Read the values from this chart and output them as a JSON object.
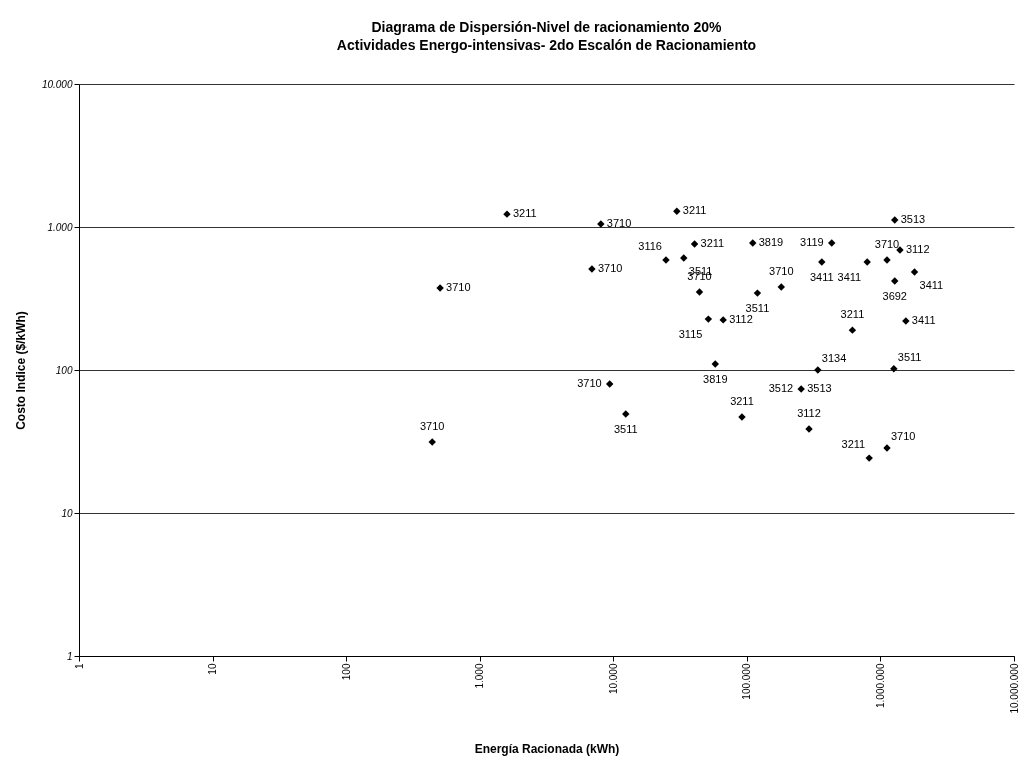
{
  "chart_data": {
    "type": "scatter",
    "title": "Diagrama de Dispersión-Nivel de racionamiento 20%",
    "subtitle": "Actividades Energo-intensivas- 2do Escalón  de Racionamiento",
    "xlabel": "Energía Racionada (kWh)",
    "ylabel": "Costo Indice ($/kWh)",
    "log": "xy",
    "grid": "y",
    "marker": "diamond",
    "xlim": [
      1,
      10000000
    ],
    "ylim": [
      1,
      10000
    ],
    "xticks": [
      1,
      10,
      100,
      {
        "value": 1000,
        "label": "1.000"
      },
      {
        "value": 10000,
        "label": "10.000"
      },
      {
        "value": 100000,
        "label": "100.000"
      },
      {
        "value": 1000000,
        "label": "1.000.000"
      },
      {
        "value": 10000000,
        "label": "10.000.000"
      }
    ],
    "yticks": [
      1,
      10,
      100,
      {
        "value": 1000,
        "label": "1.000"
      },
      {
        "value": 10000,
        "label": "10.000"
      }
    ],
    "series": [
      {
        "color": "#000000",
        "x": [
          1600,
          8070,
          505,
          441,
          6920,
          29900,
          24800,
          33700,
          40600,
          44200,
          51500,
          66500,
          110700,
          181000,
          120000,
          432000,
          364000,
          796000,
          1120000,
          1400000,
          1280000,
          1800000,
          1550000,
          617000,
          1280000,
          1260000,
          340000,
          58000,
          255000,
          91900,
          292000,
          824000,
          1120000,
          9400,
          12400
        ],
        "values": [
          1230,
          1050,
          374,
          31.4,
          508,
          1290,
          588,
          607,
          760,
          351,
          227,
          224,
          773,
          381,
          345,
          773,
          569,
          569,
          588,
          690,
          419,
          484,
          220,
          190,
          1120,
          102,
          100,
          110,
          73.6,
          46.9,
          38.7,
          24.2,
          28.5,
          79.8,
          49.3
        ]
      }
    ],
    "annotations": [
      {
        "text": "3211",
        "x": 1600,
        "y": 1230
      },
      {
        "text": "3710",
        "x": 8070,
        "y": 1050
      },
      {
        "text": "3710",
        "x": 505,
        "y": 374
      },
      {
        "text": "3710",
        "x": 441,
        "y": 31.4
      },
      {
        "text": "3710",
        "x": 6920,
        "y": 508
      },
      {
        "text": "3211",
        "x": 29900,
        "y": 1290
      },
      {
        "text": "3116",
        "x": 24800,
        "y": 588
      },
      {
        "text": "3511",
        "x": 33700,
        "y": 607
      },
      {
        "text": "3211",
        "x": 40600,
        "y": 760
      },
      {
        "text": "3710",
        "x": 44200,
        "y": 351
      },
      {
        "text": "3115",
        "x": 51500,
        "y": 227
      },
      {
        "text": "3112",
        "x": 66500,
        "y": 224
      },
      {
        "text": "3819",
        "x": 110700,
        "y": 773
      },
      {
        "text": "3710",
        "x": 181000,
        "y": 381
      },
      {
        "text": "3511",
        "x": 120000,
        "y": 345
      },
      {
        "text": "3119",
        "x": 432000,
        "y": 773
      },
      {
        "text": "3411",
        "x": 364000,
        "y": 569
      },
      {
        "text": "3411",
        "x": 796000,
        "y": 569
      },
      {
        "text": "3710",
        "x": 1120000,
        "y": 588
      },
      {
        "text": "3112",
        "x": 1400000,
        "y": 690
      },
      {
        "text": "3692",
        "x": 1280000,
        "y": 419
      },
      {
        "text": "3411",
        "x": 1800000,
        "y": 484
      },
      {
        "text": "3411",
        "x": 1550000,
        "y": 220
      },
      {
        "text": "3211",
        "x": 617000,
        "y": 190
      },
      {
        "text": "3513",
        "x": 1280000,
        "y": 1120
      },
      {
        "text": "3511",
        "x": 1260000,
        "y": 102
      },
      {
        "text": "3134",
        "x": 340000,
        "y": 100
      },
      {
        "text": "3819",
        "x": 58000,
        "y": 110
      },
      {
        "text": "3513",
        "x": 255000,
        "y": 73.6
      },
      {
        "text": "3512",
        "x": 255000,
        "y": 73.6
      },
      {
        "text": "3211",
        "x": 91900,
        "y": 46.9
      },
      {
        "text": "3112",
        "x": 292000,
        "y": 38.7
      },
      {
        "text": "3211",
        "x": 824000,
        "y": 24.2
      },
      {
        "text": "3710",
        "x": 1120000,
        "y": 28.5
      },
      {
        "text": "3710",
        "x": 9400,
        "y": 79.8
      },
      {
        "text": "3511",
        "x": 12400,
        "y": 49.3
      }
    ]
  }
}
